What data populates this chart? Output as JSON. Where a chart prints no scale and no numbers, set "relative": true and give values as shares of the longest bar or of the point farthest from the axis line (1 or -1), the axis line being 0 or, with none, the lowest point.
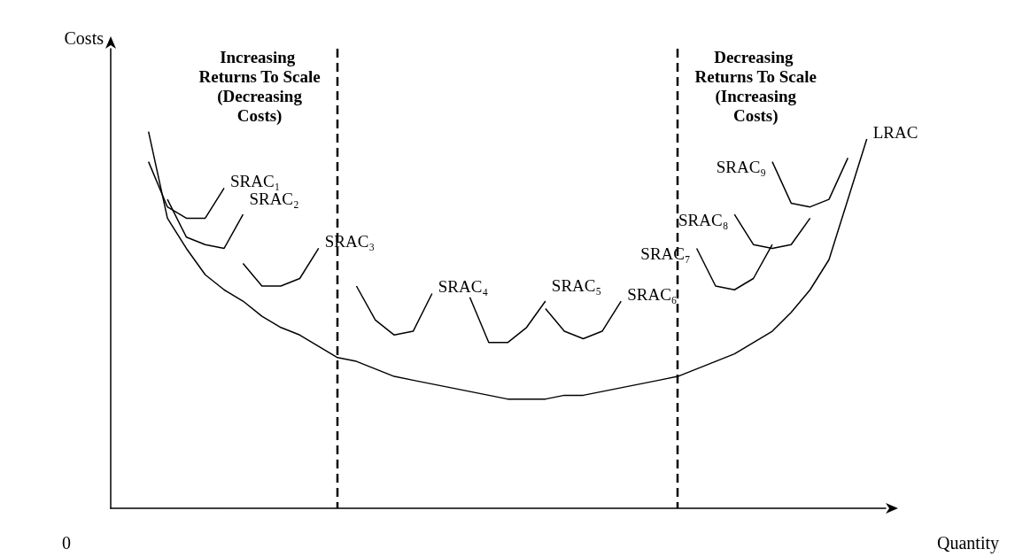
{
  "chart_data": {
    "type": "line",
    "relative": true,
    "xlabel": "Quantity",
    "ylabel": "Costs",
    "annotations": [
      "0",
      "Increasing Returns To Scale (Decreasing Costs)",
      "Decreasing Returns To Scale (Increasing Costs)"
    ],
    "grid": false,
    "legend": false,
    "marker": "none",
    "line_style": "solid",
    "categories": [
      null,
      null,
      null,
      null,
      null,
      null,
      null,
      null,
      null,
      null,
      null,
      null,
      null,
      null,
      null,
      null,
      null,
      null,
      null,
      null,
      null,
      null,
      null,
      null,
      null,
      null,
      null,
      null,
      null,
      null,
      null,
      null,
      null,
      null,
      null,
      null,
      null,
      null,
      null,
      null,
      null,
      null
    ],
    "series": [
      {
        "name": "LRAC",
        "color": "#000000",
        "values": [
          null,
          null,
          1.0,
          0.77,
          0.69,
          0.62,
          0.58,
          0.55,
          0.51,
          0.48,
          0.46,
          0.43,
          0.4,
          0.39,
          0.37,
          0.35,
          0.34,
          0.33,
          0.32,
          0.31,
          0.3,
          0.29,
          0.29,
          0.29,
          0.3,
          0.3,
          0.31,
          0.32,
          0.33,
          0.34,
          0.35,
          0.37,
          0.39,
          0.41,
          0.44,
          0.47,
          0.52,
          0.58,
          0.66,
          0.82,
          0.98,
          null
        ]
      },
      {
        "name": "SRAC₁",
        "color": "#000000",
        "values": [
          null,
          null,
          0.92,
          0.8,
          0.77,
          0.77,
          0.85,
          null,
          null,
          null,
          null,
          null,
          null,
          null,
          null,
          null,
          null,
          null,
          null,
          null,
          null,
          null,
          null,
          null,
          null,
          null,
          null,
          null,
          null,
          null,
          null,
          null,
          null,
          null,
          null,
          null,
          null,
          null,
          null,
          null,
          null,
          null
        ]
      },
      {
        "name": "SRAC₂",
        "color": "#000000",
        "values": [
          null,
          null,
          null,
          0.82,
          0.72,
          0.7,
          0.69,
          0.78,
          null,
          null,
          null,
          null,
          null,
          null,
          null,
          null,
          null,
          null,
          null,
          null,
          null,
          null,
          null,
          null,
          null,
          null,
          null,
          null,
          null,
          null,
          null,
          null,
          null,
          null,
          null,
          null,
          null,
          null,
          null,
          null,
          null,
          null
        ]
      },
      {
        "name": "SRAC₃",
        "color": "#000000",
        "values": [
          null,
          null,
          null,
          null,
          null,
          null,
          null,
          0.65,
          0.59,
          0.59,
          0.61,
          0.69,
          null,
          null,
          null,
          null,
          null,
          null,
          null,
          null,
          null,
          null,
          null,
          null,
          null,
          null,
          null,
          null,
          null,
          null,
          null,
          null,
          null,
          null,
          null,
          null,
          null,
          null,
          null,
          null,
          null,
          null
        ]
      },
      {
        "name": "SRAC₄",
        "color": "#000000",
        "values": [
          null,
          null,
          null,
          null,
          null,
          null,
          null,
          null,
          null,
          null,
          null,
          null,
          null,
          0.59,
          0.5,
          0.46,
          0.47,
          0.57,
          null,
          null,
          null,
          null,
          null,
          null,
          null,
          null,
          null,
          null,
          null,
          null,
          null,
          null,
          null,
          null,
          null,
          null,
          null,
          null,
          null,
          null,
          null,
          null
        ]
      },
      {
        "name": "SRAC₅",
        "color": "#000000",
        "values": [
          null,
          null,
          null,
          null,
          null,
          null,
          null,
          null,
          null,
          null,
          null,
          null,
          null,
          null,
          null,
          null,
          null,
          null,
          null,
          0.56,
          0.44,
          0.44,
          0.48,
          0.55,
          null,
          null,
          null,
          null,
          null,
          null,
          null,
          null,
          null,
          null,
          null,
          null,
          null,
          null,
          null,
          null,
          null,
          null
        ]
      },
      {
        "name": "SRAC₆",
        "color": "#000000",
        "values": [
          null,
          null,
          null,
          null,
          null,
          null,
          null,
          null,
          null,
          null,
          null,
          null,
          null,
          null,
          null,
          null,
          null,
          null,
          null,
          null,
          null,
          null,
          null,
          0.53,
          0.47,
          0.45,
          0.47,
          0.55,
          null,
          null,
          null,
          null,
          null,
          null,
          null,
          null,
          null,
          null,
          null,
          null,
          null,
          null
        ]
      },
      {
        "name": "SRAC₇",
        "color": "#000000",
        "values": [
          null,
          null,
          null,
          null,
          null,
          null,
          null,
          null,
          null,
          null,
          null,
          null,
          null,
          null,
          null,
          null,
          null,
          null,
          null,
          null,
          null,
          null,
          null,
          null,
          null,
          null,
          null,
          null,
          null,
          null,
          null,
          0.69,
          0.59,
          0.58,
          0.61,
          0.7,
          null,
          null,
          null,
          null,
          null,
          null
        ]
      },
      {
        "name": "SRAC₈",
        "color": "#000000",
        "values": [
          null,
          null,
          null,
          null,
          null,
          null,
          null,
          null,
          null,
          null,
          null,
          null,
          null,
          null,
          null,
          null,
          null,
          null,
          null,
          null,
          null,
          null,
          null,
          null,
          null,
          null,
          null,
          null,
          null,
          null,
          null,
          null,
          null,
          0.78,
          0.7,
          0.69,
          0.7,
          0.77,
          null,
          null,
          null,
          null
        ]
      },
      {
        "name": "SRAC₉",
        "color": "#000000",
        "values": [
          null,
          null,
          null,
          null,
          null,
          null,
          null,
          null,
          null,
          null,
          null,
          null,
          null,
          null,
          null,
          null,
          null,
          null,
          null,
          null,
          null,
          null,
          null,
          null,
          null,
          null,
          null,
          null,
          null,
          null,
          null,
          null,
          null,
          null,
          null,
          0.92,
          0.81,
          0.8,
          0.82,
          0.93,
          null,
          null
        ]
      }
    ]
  }
}
